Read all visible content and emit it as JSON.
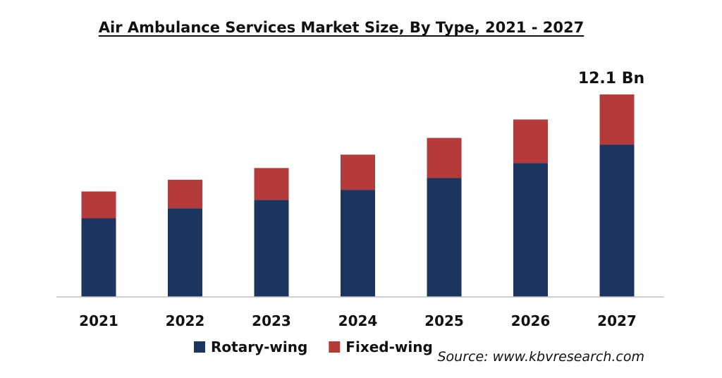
{
  "chart_data": {
    "type": "bar",
    "stacked": true,
    "title": "Air Ambulance Services Market Size, By Type, 2021 - 2027",
    "categories": [
      "2021",
      "2022",
      "2023",
      "2024",
      "2025",
      "2026",
      "2027"
    ],
    "series": [
      {
        "name": "Rotary-wing",
        "color": "#1b355e",
        "values": [
          4.7,
          5.3,
          5.8,
          6.4,
          7.1,
          8.0,
          9.1
        ]
      },
      {
        "name": "Fixed-wing",
        "color": "#b53b3b",
        "values": [
          1.6,
          1.7,
          1.9,
          2.1,
          2.4,
          2.6,
          3.0
        ]
      }
    ],
    "ylim": [
      0,
      12.6
    ],
    "grid": false,
    "legend": "bottom-left",
    "annotation": {
      "category": "2027",
      "text": "12.1 Bn"
    },
    "source": "Source: www.kbvresearch.com"
  }
}
